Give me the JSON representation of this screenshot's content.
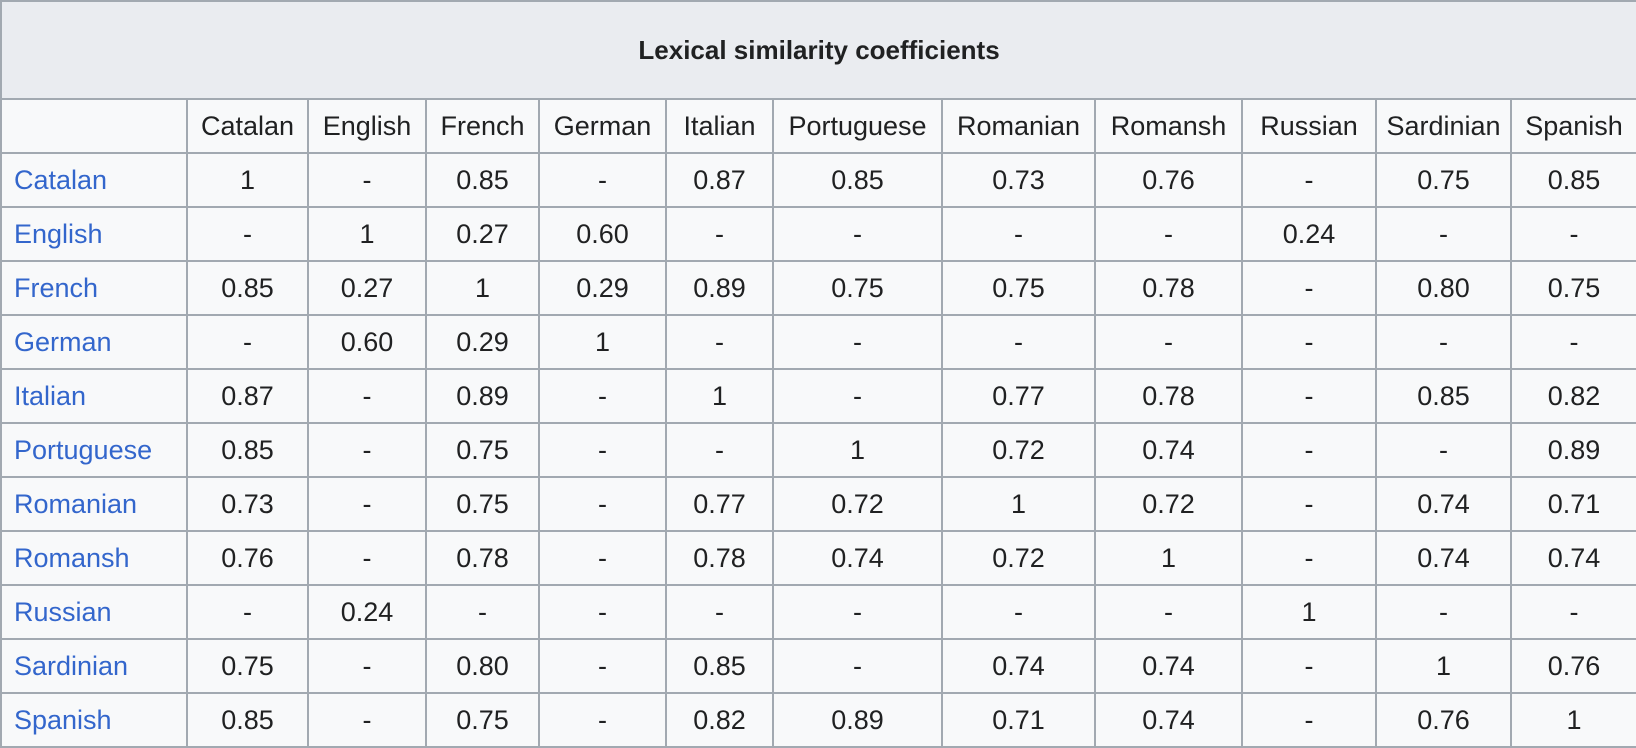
{
  "table": {
    "title": "Lexical similarity coefficients",
    "columns": [
      "Catalan",
      "English",
      "French",
      "German",
      "Italian",
      "Portuguese",
      "Romanian",
      "Romansh",
      "Russian",
      "Sardinian",
      "Spanish"
    ],
    "rows": [
      {
        "label": "Catalan",
        "values": [
          "1",
          "-",
          "0.85",
          "-",
          "0.87",
          "0.85",
          "0.73",
          "0.76",
          "-",
          "0.75",
          "0.85"
        ]
      },
      {
        "label": "English",
        "values": [
          "-",
          "1",
          "0.27",
          "0.60",
          "-",
          "-",
          "-",
          "-",
          "0.24",
          "-",
          "-"
        ]
      },
      {
        "label": "French",
        "values": [
          "0.85",
          "0.27",
          "1",
          "0.29",
          "0.89",
          "0.75",
          "0.75",
          "0.78",
          "-",
          "0.80",
          "0.75"
        ]
      },
      {
        "label": "German",
        "values": [
          "-",
          "0.60",
          "0.29",
          "1",
          "-",
          "-",
          "-",
          "-",
          "-",
          "-",
          "-"
        ]
      },
      {
        "label": "Italian",
        "values": [
          "0.87",
          "-",
          "0.89",
          "-",
          "1",
          "-",
          "0.77",
          "0.78",
          "-",
          "0.85",
          "0.82"
        ]
      },
      {
        "label": "Portuguese",
        "values": [
          "0.85",
          "-",
          "0.75",
          "-",
          "-",
          "1",
          "0.72",
          "0.74",
          "-",
          "-",
          "0.89"
        ]
      },
      {
        "label": "Romanian",
        "values": [
          "0.73",
          "-",
          "0.75",
          "-",
          "0.77",
          "0.72",
          "1",
          "0.72",
          "-",
          "0.74",
          "0.71"
        ]
      },
      {
        "label": "Romansh",
        "values": [
          "0.76",
          "-",
          "0.78",
          "-",
          "0.78",
          "0.74",
          "0.72",
          "1",
          "-",
          "0.74",
          "0.74"
        ]
      },
      {
        "label": "Russian",
        "values": [
          "-",
          "0.24",
          "-",
          "-",
          "-",
          "-",
          "-",
          "-",
          "1",
          "-",
          "-"
        ]
      },
      {
        "label": "Sardinian",
        "values": [
          "0.75",
          "-",
          "0.80",
          "-",
          "0.85",
          "-",
          "0.74",
          "0.74",
          "-",
          "1",
          "0.76"
        ]
      },
      {
        "label": "Spanish",
        "values": [
          "0.85",
          "-",
          "0.75",
          "-",
          "0.82",
          "0.89",
          "0.71",
          "0.74",
          "-",
          "0.76",
          "1"
        ]
      }
    ]
  },
  "colors": {
    "link": "#3366cc",
    "header_bg": "#eaecf0",
    "cell_bg": "#f8f9fa",
    "border": "#a2a9b1",
    "text": "#202122"
  }
}
